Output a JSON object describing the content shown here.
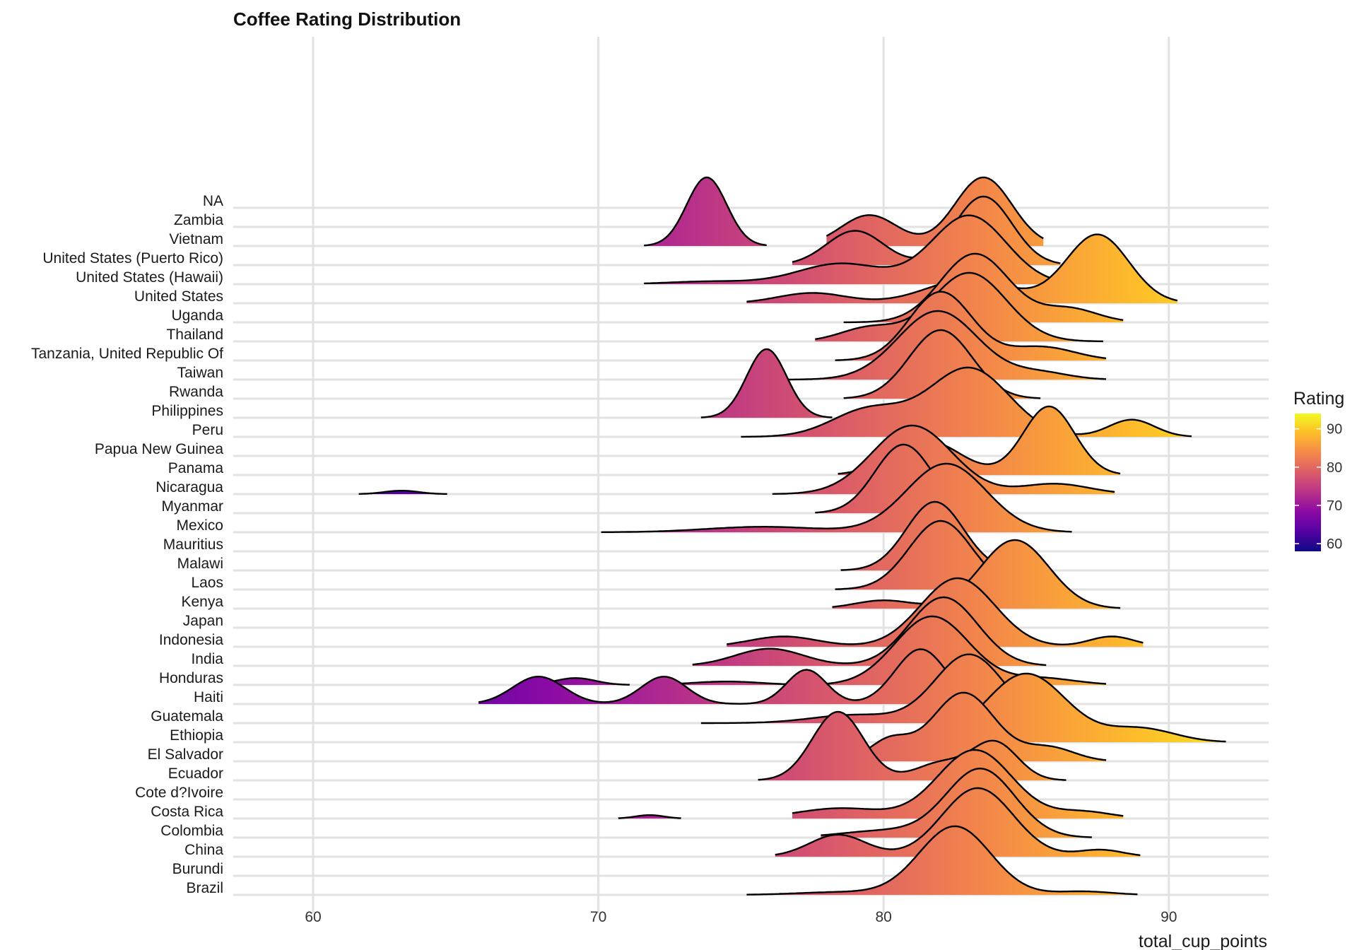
{
  "chart_data": {
    "type": "ridgeline",
    "title": "Coffee Rating Distribution",
    "xlabel": "total_cup_points",
    "ylabel": "",
    "xlim": [
      57.2,
      93.5
    ],
    "x_ticks": [
      60,
      70,
      80,
      90
    ],
    "grid": true,
    "legend": {
      "title": "Rating",
      "placement": "right",
      "ticks": [
        60,
        70,
        80,
        90
      ],
      "range": [
        58,
        94
      ],
      "colors": [
        "#0d0887",
        "#5402a3",
        "#8b0aa5",
        "#b93289",
        "#db5c68",
        "#f48849",
        "#febc2a",
        "#f0f921"
      ]
    },
    "categories": [
      "Brazil",
      "Burundi",
      "China",
      "Colombia",
      "Costa Rica",
      "Cote d?Ivoire",
      "Ecuador",
      "El Salvador",
      "Ethiopia",
      "Guatemala",
      "Haiti",
      "Honduras",
      "India",
      "Indonesia",
      "Japan",
      "Kenya",
      "Laos",
      "Malawi",
      "Mauritius",
      "Mexico",
      "Myanmar",
      "Nicaragua",
      "Panama",
      "Papua New Guinea",
      "Peru",
      "Philippines",
      "Rwanda",
      "Taiwan",
      "Tanzania, United Republic Of",
      "Thailand",
      "Uganda",
      "United States",
      "United States (Hawaii)",
      "United States (Puerto Rico)",
      "Vietnam",
      "Zambia",
      "NA"
    ],
    "series": [
      {
        "name": "Brazil",
        "range": [
          75.2,
          88.9
        ],
        "peaks": [
          [
            82.5,
            1.0,
            1.25
          ],
          [
            78.5,
            0.04,
            1.5
          ],
          [
            87.0,
            0.05,
            1.0
          ]
        ]
      },
      {
        "name": "China",
        "range": [
          76.2,
          89.0
        ],
        "peaks": [
          [
            83.3,
            1.0,
            1.25
          ],
          [
            78.4,
            0.32,
            1.0
          ],
          [
            87.6,
            0.1,
            0.8
          ]
        ]
      },
      {
        "name": "Colombia",
        "range": [
          77.8,
          87.3
        ],
        "peaks": [
          [
            83.4,
            1.0,
            1.2
          ],
          [
            80.0,
            0.1,
            1.5
          ]
        ]
      },
      {
        "name": "Costa Rica",
        "range": [
          76.8,
          88.4
        ],
        "peaks": [
          [
            83.2,
            1.0,
            1.3
          ],
          [
            78.5,
            0.15,
            1.5
          ],
          [
            87.0,
            0.1,
            1.0
          ]
        ]
      },
      {
        "name": "Costa Rica",
        "range": [
          70.7,
          72.9
        ],
        "peaks": [
          [
            71.8,
            0.05,
            0.5
          ]
        ]
      },
      {
        "name": "Cote d?Ivoire",
        "range": [],
        "peaks": []
      },
      {
        "name": "Ecuador",
        "range": [
          75.6,
          86.4
        ],
        "peaks": [
          [
            78.4,
            1.0,
            0.9
          ],
          [
            82.0,
            0.25,
            0.9
          ],
          [
            83.9,
            0.55,
            0.8
          ]
        ]
      },
      {
        "name": "El Salvador",
        "range": [
          79.0,
          87.8
        ],
        "peaks": [
          [
            82.8,
            1.0,
            1.1
          ],
          [
            80.2,
            0.3,
            0.7
          ],
          [
            85.8,
            0.2,
            0.9
          ]
        ]
      },
      {
        "name": "Ethiopia",
        "range": [
          82.6,
          92.0
        ],
        "peaks": [
          [
            85.0,
            1.0,
            1.4
          ],
          [
            89.0,
            0.2,
            1.2
          ]
        ]
      },
      {
        "name": "Guatemala",
        "range": [
          73.6,
          87.3
        ],
        "peaks": [
          [
            83.0,
            1.0,
            1.2
          ],
          [
            79.0,
            0.12,
            1.5
          ]
        ]
      },
      {
        "name": "Haiti",
        "range": [
          65.8,
          85.6
        ],
        "peaks": [
          [
            67.9,
            0.4,
            0.9
          ],
          [
            72.3,
            0.4,
            0.8
          ],
          [
            77.3,
            0.5,
            0.7
          ],
          [
            81.3,
            0.8,
            0.9
          ],
          [
            84.5,
            0.1,
            0.7
          ]
        ]
      },
      {
        "name": "Honduras",
        "range": [
          72.4,
          87.8
        ],
        "peaks": [
          [
            81.7,
            1.0,
            1.3
          ],
          [
            74.5,
            0.05,
            1.2
          ],
          [
            85.5,
            0.1,
            1.2
          ]
        ]
      },
      {
        "name": "Honduras",
        "range": [
          67.4,
          71.1
        ],
        "peaks": [
          [
            69.2,
            0.1,
            0.7
          ]
        ]
      },
      {
        "name": "India",
        "range": [
          73.3,
          85.7
        ],
        "peaks": [
          [
            82.1,
            1.0,
            1.2
          ],
          [
            76.0,
            0.25,
            1.2
          ]
        ]
      },
      {
        "name": "Indonesia",
        "range": [
          74.5,
          89.1
        ],
        "peaks": [
          [
            82.6,
            1.0,
            1.3
          ],
          [
            76.5,
            0.15,
            1.2
          ],
          [
            88.0,
            0.15,
            0.8
          ]
        ]
      },
      {
        "name": "Japan",
        "range": [],
        "peaks": []
      },
      {
        "name": "Kenya",
        "range": [
          78.2,
          88.3
        ],
        "peaks": [
          [
            84.6,
            1.0,
            1.2
          ],
          [
            80.0,
            0.12,
            1.0
          ]
        ]
      },
      {
        "name": "Laos",
        "range": [
          78.3,
          84.6
        ],
        "peaks": [
          [
            82.0,
            1.0,
            1.1
          ]
        ]
      },
      {
        "name": "Malawi",
        "range": [
          78.5,
          84.2
        ],
        "peaks": [
          [
            81.8,
            1.0,
            1.0
          ]
        ]
      },
      {
        "name": "Mauritius",
        "range": [],
        "peaks": []
      },
      {
        "name": "Mexico",
        "range": [
          70.1,
          86.6
        ],
        "peaks": [
          [
            82.2,
            1.0,
            1.4
          ],
          [
            75.8,
            0.08,
            2.0
          ]
        ]
      },
      {
        "name": "Myanmar",
        "range": [
          77.6,
          84.1
        ],
        "peaks": [
          [
            80.7,
            1.0,
            1.0
          ]
        ]
      },
      {
        "name": "Nicaragua",
        "range": [
          76.1,
          88.1
        ],
        "peaks": [
          [
            81.0,
            1.0,
            1.4
          ],
          [
            86.0,
            0.15,
            1.2
          ]
        ]
      },
      {
        "name": "Nicaragua",
        "range": [
          61.6,
          64.7
        ],
        "peaks": [
          [
            63.1,
            0.05,
            0.6
          ]
        ]
      },
      {
        "name": "Panama",
        "range": [
          78.4,
          88.3
        ],
        "peaks": [
          [
            85.8,
            1.0,
            0.9
          ],
          [
            81.5,
            0.5,
            1.2
          ]
        ]
      },
      {
        "name": "Papua New Guinea",
        "range": [],
        "peaks": []
      },
      {
        "name": "Peru",
        "range": [
          75.0,
          90.8
        ],
        "peaks": [
          [
            83.0,
            1.0,
            1.4
          ],
          [
            79.5,
            0.4,
            1.3
          ],
          [
            88.7,
            0.25,
            0.8
          ]
        ]
      },
      {
        "name": "Philippines",
        "range": [
          73.6,
          78.2
        ],
        "peaks": [
          [
            75.9,
            1.0,
            0.7
          ]
        ]
      },
      {
        "name": "Rwanda",
        "range": [
          78.6,
          85.5
        ],
        "peaks": [
          [
            82.0,
            1.0,
            1.1
          ]
        ]
      },
      {
        "name": "Taiwan",
        "range": [
          76.4,
          87.8
        ],
        "peaks": [
          [
            81.9,
            1.0,
            1.4
          ],
          [
            85.5,
            0.1,
            1.0
          ]
        ]
      },
      {
        "name": "Tanzania, United Republic Of",
        "range": [
          78.3,
          87.8
        ],
        "peaks": [
          [
            82.0,
            1.0,
            1.1
          ],
          [
            85.5,
            0.2,
            1.2
          ]
        ]
      },
      {
        "name": "Thailand",
        "range": [
          77.6,
          87.7
        ],
        "peaks": [
          [
            83.0,
            1.0,
            1.3
          ],
          [
            79.5,
            0.2,
            1.0
          ]
        ]
      },
      {
        "name": "Uganda",
        "range": [
          78.6,
          88.4
        ],
        "peaks": [
          [
            83.2,
            1.0,
            1.2
          ],
          [
            86.5,
            0.2,
            1.0
          ]
        ]
      },
      {
        "name": "United States",
        "range": [
          75.2,
          90.3
        ],
        "peaks": [
          [
            87.5,
            1.0,
            1.1
          ],
          [
            83.0,
            0.35,
            1.5
          ],
          [
            77.5,
            0.15,
            1.2
          ]
        ]
      },
      {
        "name": "United States (Hawaii)",
        "range": [
          71.6,
          88.9
        ],
        "peaks": [
          [
            83.0,
            1.0,
            1.3
          ],
          [
            78.5,
            0.3,
            1.5
          ],
          [
            74.0,
            0.04,
            1.5
          ]
        ]
      },
      {
        "name": "United States (Puerto Rico)",
        "range": [
          76.8,
          86.2
        ],
        "peaks": [
          [
            83.5,
            1.0,
            1.0
          ],
          [
            79.0,
            0.5,
            1.0
          ]
        ]
      },
      {
        "name": "Vietnam",
        "range": [
          71.6,
          75.9
        ],
        "peaks": [
          [
            73.8,
            1.0,
            0.7
          ]
        ]
      },
      {
        "name": "Vietnam",
        "range": [
          78.0,
          85.6
        ],
        "peaks": [
          [
            83.5,
            1.0,
            1.0
          ],
          [
            79.5,
            0.45,
            1.0
          ]
        ]
      },
      {
        "name": "Zambia",
        "range": [],
        "peaks": []
      },
      {
        "name": "NA",
        "range": [],
        "peaks": []
      }
    ]
  }
}
